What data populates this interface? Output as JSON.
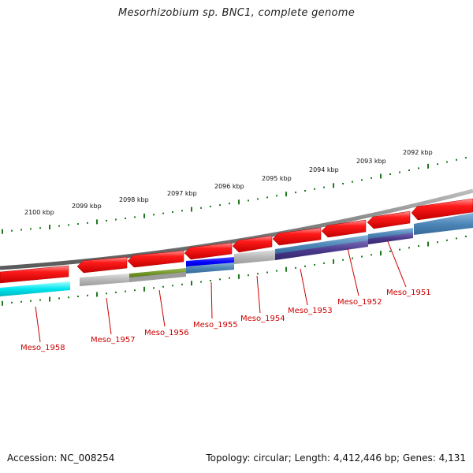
{
  "title": "Mesorhizobium sp. BNC1, complete genome",
  "footer": {
    "accession": "Accession: NC_008254",
    "summary": "Topology: circular; Length: 4,412,446 bp; Genes: 4,131"
  },
  "ruler_labels": [
    "2092 kbp",
    "2093 kbp",
    "2094 kbp",
    "2095 kbp",
    "2096 kbp",
    "2097 kbp",
    "2098 kbp",
    "2099 kbp",
    "2100 kbp"
  ],
  "gene_labels": [
    "Meso_1951",
    "Meso_1952",
    "Meso_1953",
    "Meso_1954",
    "Meso_1955",
    "Meso_1956",
    "Meso_1957",
    "Meso_1958"
  ],
  "colors": {
    "feature_red": "#ff0000",
    "backbone_gray": "#8c8c8c",
    "tick_green": "#1e7a1e",
    "label_red": "#cc0000",
    "cyan": "#00e5ee",
    "steelblue": "#4d86b8",
    "purple": "#4b3a8c",
    "olive": "#6b8e23",
    "blue": "#0000ff",
    "silver": "#b8b8b8"
  }
}
